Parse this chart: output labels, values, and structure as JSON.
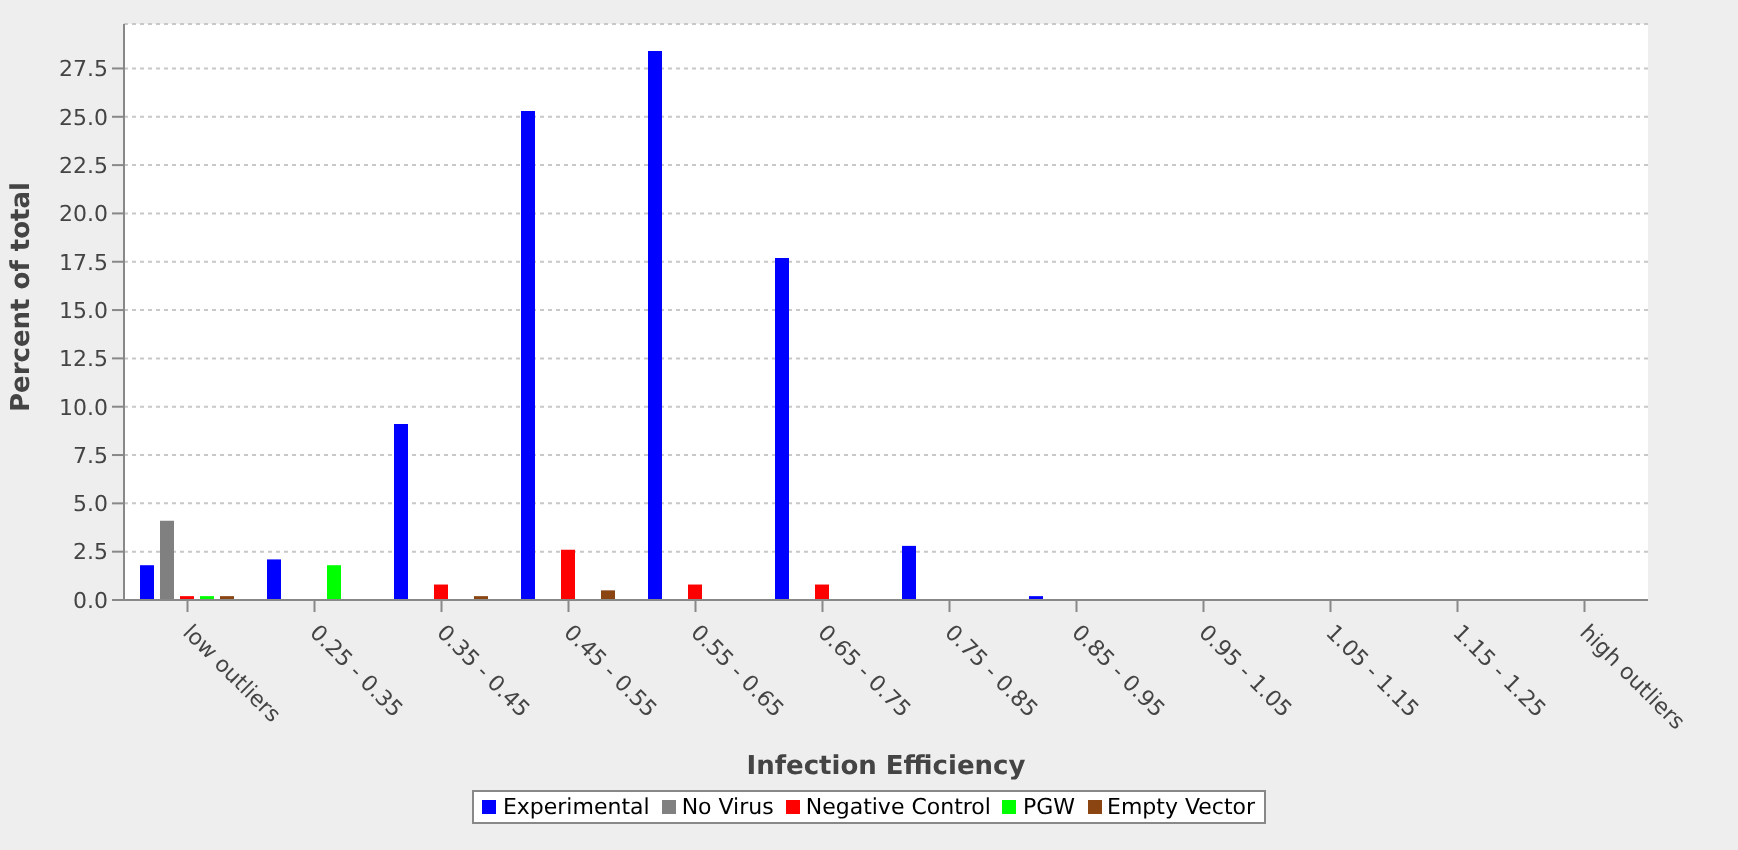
{
  "chart_data": {
    "type": "bar",
    "xlabel": "Infection Efficiency",
    "ylabel": "Percent of total",
    "categories": [
      "low outliers",
      "0.25 - 0.35",
      "0.35 - 0.45",
      "0.45 - 0.55",
      "0.55 - 0.65",
      "0.65 - 0.75",
      "0.75 - 0.85",
      "0.85 - 0.95",
      "0.95 - 1.05",
      "1.05 - 1.15",
      "1.15 - 1.25",
      "high outliers"
    ],
    "series": [
      {
        "name": "Experimental",
        "color": "#0000ff",
        "values": [
          1.8,
          2.1,
          9.1,
          25.3,
          28.4,
          17.7,
          2.8,
          0.2,
          0,
          0,
          0,
          0
        ]
      },
      {
        "name": "No Virus",
        "color": "#808080",
        "values": [
          4.1,
          0,
          0,
          0,
          0,
          0,
          0,
          0,
          0,
          0,
          0,
          0
        ]
      },
      {
        "name": "Negative Control",
        "color": "#ff0000",
        "values": [
          0.2,
          0,
          0.8,
          2.6,
          0.8,
          0.8,
          0,
          0,
          0,
          0,
          0,
          0
        ]
      },
      {
        "name": "PGW",
        "color": "#00ff00",
        "values": [
          0.2,
          1.8,
          0,
          0,
          0,
          0,
          0,
          0,
          0,
          0,
          0,
          0
        ]
      },
      {
        "name": "Empty Vector",
        "color": "#8b4513",
        "values": [
          0.2,
          0,
          0.2,
          0.5,
          0,
          0,
          0,
          0,
          0,
          0,
          0,
          0
        ]
      }
    ],
    "ylim": [
      0,
      29.8
    ],
    "yticks": [
      {
        "value": 0,
        "label": "0.0"
      },
      2.5,
      {
        "value": 5,
        "label": "5.0"
      },
      7.5,
      {
        "value": 10,
        "label": "10.0"
      },
      12.5,
      {
        "value": 15,
        "label": "15.0"
      },
      17.5,
      {
        "value": 20,
        "label": "20.0"
      },
      22.5,
      {
        "value": 25,
        "label": "25.0"
      },
      27.5
    ],
    "grid": "y",
    "legend": "bottom"
  }
}
